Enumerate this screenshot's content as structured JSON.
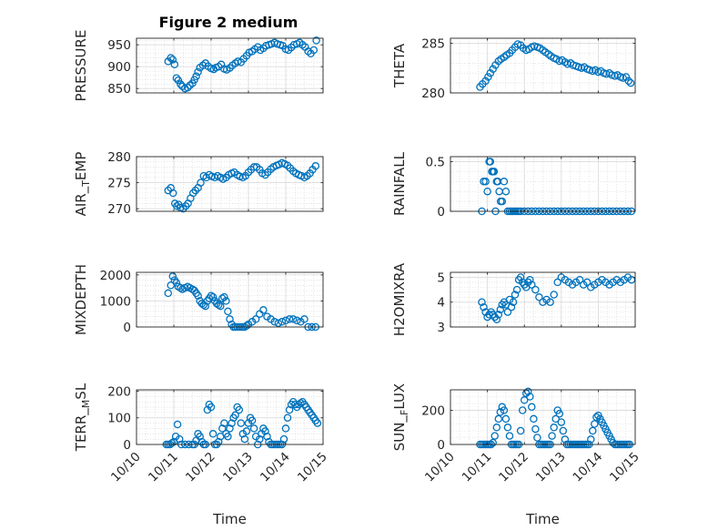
{
  "figure": {
    "title": "Figure 2 medium"
  },
  "chart_data": [
    {
      "type": "scatter",
      "ylabel": "PRESSURE",
      "ylim": [
        840,
        965
      ],
      "yticks": [
        850,
        900,
        950
      ],
      "yticklabels": [
        "850",
        "900",
        "950"
      ],
      "xtick_labels_visible": false,
      "x": [
        0.85,
        0.92,
        0.97,
        1.02,
        1.07,
        1.12,
        1.18,
        1.23,
        1.3,
        1.37,
        1.43,
        1.5,
        1.55,
        1.6,
        1.65,
        1.7,
        1.78,
        1.85,
        1.92,
        2.0,
        2.07,
        2.13,
        2.2,
        2.27,
        2.35,
        2.42,
        2.5,
        2.57,
        2.65,
        2.72,
        2.8,
        2.87,
        2.95,
        3.02,
        3.1,
        3.17,
        3.25,
        3.32,
        3.4,
        3.47,
        3.55,
        3.62,
        3.7,
        3.77,
        3.85,
        3.92,
        4.0,
        4.07,
        4.15,
        4.22,
        4.3,
        4.37,
        4.45,
        4.52,
        4.6,
        4.67,
        4.75,
        4.82
      ],
      "y": [
        912,
        920,
        916,
        905,
        874,
        869,
        860,
        855,
        850,
        852,
        857,
        862,
        870,
        878,
        888,
        898,
        903,
        908,
        901,
        896,
        894,
        898,
        900,
        905,
        895,
        893,
        897,
        903,
        908,
        912,
        910,
        918,
        925,
        932,
        935,
        940,
        945,
        938,
        942,
        948,
        950,
        952,
        955,
        952,
        950,
        948,
        940,
        938,
        944,
        950,
        952,
        955,
        950,
        945,
        935,
        930,
        938,
        960
      ],
      "color": "#0072BD"
    },
    {
      "type": "scatter",
      "ylabel": "THETA",
      "ylim": [
        280,
        285.5
      ],
      "yticks": [
        280,
        285
      ],
      "yticklabels": [
        "280",
        "285"
      ],
      "xtick_labels_visible": false,
      "x": [
        0.8,
        0.87,
        0.95,
        1.02,
        1.08,
        1.15,
        1.22,
        1.3,
        1.37,
        1.45,
        1.52,
        1.6,
        1.67,
        1.75,
        1.82,
        1.9,
        1.97,
        2.05,
        2.12,
        2.2,
        2.27,
        2.35,
        2.42,
        2.5,
        2.57,
        2.65,
        2.72,
        2.8,
        2.87,
        2.95,
        3.02,
        3.1,
        3.17,
        3.25,
        3.32,
        3.4,
        3.47,
        3.55,
        3.62,
        3.7,
        3.77,
        3.85,
        3.92,
        4.0,
        4.07,
        4.15,
        4.22,
        4.3,
        4.37,
        4.45,
        4.52,
        4.6,
        4.67,
        4.75,
        4.82,
        4.88
      ],
      "y": [
        280.6,
        280.9,
        281.2,
        281.6,
        282.0,
        282.4,
        282.8,
        283.2,
        283.4,
        283.6,
        283.8,
        284.0,
        284.3,
        284.6,
        284.9,
        284.8,
        284.5,
        284.3,
        284.4,
        284.6,
        284.7,
        284.6,
        284.5,
        284.3,
        284.1,
        283.9,
        283.7,
        283.5,
        283.4,
        283.2,
        283.3,
        283.1,
        282.9,
        283.0,
        282.8,
        282.7,
        282.6,
        282.5,
        282.6,
        282.4,
        282.3,
        282.2,
        282.3,
        282.1,
        282.2,
        282.0,
        281.9,
        282.0,
        281.8,
        281.7,
        281.8,
        281.6,
        281.5,
        281.6,
        281.2,
        281.0
      ],
      "color": "#0072BD"
    },
    {
      "type": "scatter",
      "ylabel": "AIR_TEMP",
      "ylim": [
        269.5,
        280
      ],
      "yticks": [
        270,
        275,
        280
      ],
      "yticklabels": [
        "270",
        "275",
        "280"
      ],
      "xtick_labels_visible": false,
      "x": [
        0.85,
        0.92,
        0.98,
        1.03,
        1.08,
        1.13,
        1.18,
        1.25,
        1.32,
        1.38,
        1.45,
        1.52,
        1.58,
        1.65,
        1.72,
        1.8,
        1.87,
        1.95,
        2.02,
        2.1,
        2.17,
        2.25,
        2.32,
        2.4,
        2.47,
        2.55,
        2.62,
        2.7,
        2.77,
        2.85,
        2.92,
        3.0,
        3.07,
        3.15,
        3.22,
        3.3,
        3.37,
        3.45,
        3.52,
        3.6,
        3.67,
        3.75,
        3.82,
        3.9,
        3.97,
        4.05,
        4.12,
        4.2,
        4.27,
        4.35,
        4.42,
        4.5,
        4.57,
        4.65,
        4.72,
        4.8
      ],
      "y": [
        273.5,
        274.0,
        273.0,
        271.0,
        270.5,
        270.8,
        270.2,
        270.0,
        270.5,
        271.0,
        272.0,
        273.0,
        273.5,
        274.0,
        275.0,
        276.3,
        276.0,
        276.5,
        276.2,
        276.0,
        276.3,
        276.0,
        275.7,
        276.0,
        276.5,
        276.8,
        277.0,
        276.5,
        276.2,
        276.0,
        276.3,
        277.0,
        277.5,
        278.0,
        278.0,
        277.5,
        276.8,
        276.5,
        277.0,
        277.6,
        278.0,
        278.3,
        278.5,
        278.8,
        278.6,
        278.3,
        277.8,
        277.2,
        276.8,
        276.5,
        276.3,
        276.0,
        276.3,
        276.8,
        277.5,
        278.2
      ],
      "color": "#0072BD"
    },
    {
      "type": "scatter",
      "ylabel": "RAINFALL",
      "ylim": [
        0,
        0.55
      ],
      "yticks": [
        0,
        0.5
      ],
      "yticklabels": [
        "0",
        "0.5"
      ],
      "xtick_labels_visible": false,
      "x": [
        0.85,
        0.9,
        0.95,
        1.0,
        1.05,
        1.08,
        1.12,
        1.15,
        1.18,
        1.22,
        1.25,
        1.28,
        1.32,
        1.36,
        1.4,
        1.45,
        1.5,
        1.55,
        1.6,
        1.65,
        1.7,
        1.75,
        1.8,
        1.85,
        1.9,
        2.0,
        2.1,
        2.2,
        2.3,
        2.4,
        2.5,
        2.6,
        2.7,
        2.8,
        2.9,
        3.0,
        3.1,
        3.2,
        3.3,
        3.4,
        3.5,
        3.6,
        3.7,
        3.8,
        3.9,
        4.0,
        4.1,
        4.2,
        4.3,
        4.4,
        4.5,
        4.6,
        4.7,
        4.8,
        4.9
      ],
      "y": [
        0,
        0.3,
        0.3,
        0.2,
        0.5,
        0.5,
        0.4,
        0.4,
        0.4,
        0,
        0.3,
        0.3,
        0.2,
        0.1,
        0.1,
        0.3,
        0.2,
        0,
        0,
        0,
        0,
        0,
        0,
        0,
        0,
        0,
        0,
        0,
        0,
        0,
        0,
        0,
        0,
        0,
        0,
        0,
        0,
        0,
        0,
        0,
        0,
        0,
        0,
        0,
        0,
        0,
        0,
        0,
        0,
        0,
        0,
        0,
        0,
        0,
        0
      ],
      "color": "#0072BD"
    },
    {
      "type": "scatter",
      "ylabel": "MIXDEPTH",
      "ylim": [
        0,
        2100
      ],
      "yticks": [
        0,
        1000,
        2000
      ],
      "yticklabels": [
        "0",
        "1000",
        "2000"
      ],
      "xtick_labels_visible": false,
      "x": [
        0.85,
        0.92,
        0.97,
        1.02,
        1.07,
        1.12,
        1.18,
        1.23,
        1.3,
        1.37,
        1.43,
        1.5,
        1.55,
        1.6,
        1.65,
        1.7,
        1.75,
        1.8,
        1.85,
        1.9,
        1.95,
        2.0,
        2.05,
        2.1,
        2.15,
        2.2,
        2.25,
        2.3,
        2.35,
        2.4,
        2.45,
        2.5,
        2.55,
        2.6,
        2.65,
        2.7,
        2.75,
        2.8,
        2.85,
        2.9,
        2.95,
        3.0,
        3.1,
        3.2,
        3.3,
        3.4,
        3.5,
        3.6,
        3.7,
        3.8,
        3.9,
        4.0,
        4.1,
        4.2,
        4.3,
        4.4,
        4.5,
        4.6,
        4.7,
        4.8
      ],
      "y": [
        1300,
        1600,
        1950,
        1800,
        1700,
        1550,
        1500,
        1450,
        1500,
        1550,
        1500,
        1450,
        1400,
        1300,
        1200,
        1000,
        900,
        850,
        800,
        1000,
        1100,
        1200,
        1150,
        1000,
        900,
        850,
        800,
        1100,
        1150,
        1000,
        600,
        300,
        100,
        0,
        0,
        0,
        0,
        0,
        0,
        0,
        50,
        100,
        200,
        300,
        500,
        650,
        400,
        300,
        200,
        150,
        200,
        250,
        300,
        300,
        250,
        200,
        300,
        0,
        0,
        0
      ],
      "color": "#0072BD"
    },
    {
      "type": "scatter",
      "ylabel": "H2OMIXRA",
      "ylim": [
        3,
        5.2
      ],
      "yticks": [
        3,
        4,
        5
      ],
      "yticklabels": [
        "3",
        "4",
        "5"
      ],
      "xtick_labels_visible": false,
      "x": [
        0.85,
        0.9,
        0.95,
        1.0,
        1.05,
        1.1,
        1.15,
        1.2,
        1.25,
        1.3,
        1.35,
        1.4,
        1.45,
        1.5,
        1.55,
        1.6,
        1.65,
        1.7,
        1.75,
        1.8,
        1.85,
        1.9,
        1.95,
        2.0,
        2.05,
        2.1,
        2.15,
        2.2,
        2.3,
        2.4,
        2.5,
        2.6,
        2.7,
        2.8,
        2.9,
        3.0,
        3.1,
        3.2,
        3.3,
        3.4,
        3.5,
        3.6,
        3.7,
        3.8,
        3.9,
        4.0,
        4.1,
        4.2,
        4.3,
        4.4,
        4.5,
        4.6,
        4.7,
        4.8,
        4.9
      ],
      "y": [
        4.0,
        3.8,
        3.6,
        3.4,
        3.5,
        3.6,
        3.5,
        3.4,
        3.3,
        3.5,
        3.7,
        3.9,
        4.0,
        3.9,
        3.6,
        4.1,
        3.8,
        4.0,
        4.3,
        4.5,
        4.9,
        5.0,
        4.8,
        4.7,
        4.6,
        4.8,
        4.9,
        4.7,
        4.5,
        4.2,
        4.0,
        4.1,
        4.0,
        4.3,
        4.8,
        5.0,
        4.9,
        4.8,
        4.7,
        4.8,
        4.9,
        4.7,
        4.8,
        4.6,
        4.7,
        4.8,
        4.9,
        4.8,
        4.7,
        4.8,
        4.9,
        4.8,
        4.9,
        5.0,
        4.9
      ],
      "color": "#0072BD"
    },
    {
      "type": "scatter",
      "ylabel": "TERR_MSL",
      "ylim": [
        0,
        205
      ],
      "yticks": [
        0,
        100,
        200
      ],
      "yticklabels": [
        "0",
        "100",
        "200"
      ],
      "xtick_labels": [
        "10/10",
        "10/11",
        "10/12",
        "10/13",
        "10/14",
        "10/15"
      ],
      "xlabel": "Time",
      "x": [
        0.8,
        0.85,
        0.9,
        0.95,
        1.0,
        1.05,
        1.1,
        1.15,
        1.2,
        1.3,
        1.4,
        1.5,
        1.55,
        1.6,
        1.65,
        1.7,
        1.75,
        1.8,
        1.85,
        1.9,
        1.95,
        2.0,
        2.05,
        2.1,
        2.15,
        2.2,
        2.25,
        2.3,
        2.35,
        2.4,
        2.45,
        2.5,
        2.55,
        2.6,
        2.65,
        2.7,
        2.75,
        2.8,
        2.85,
        2.9,
        2.95,
        3.0,
        3.05,
        3.1,
        3.15,
        3.2,
        3.25,
        3.3,
        3.35,
        3.4,
        3.45,
        3.5,
        3.55,
        3.6,
        3.65,
        3.7,
        3.75,
        3.8,
        3.85,
        3.9,
        3.95,
        4.0,
        4.05,
        4.1,
        4.15,
        4.2,
        4.25,
        4.3,
        4.35,
        4.4,
        4.45,
        4.5,
        4.55,
        4.6,
        4.65,
        4.7,
        4.75,
        4.8,
        4.85
      ],
      "y": [
        0,
        0,
        0,
        5,
        10,
        30,
        75,
        20,
        0,
        0,
        0,
        0,
        0,
        15,
        40,
        30,
        10,
        0,
        0,
        130,
        150,
        140,
        40,
        0,
        0,
        10,
        30,
        60,
        80,
        40,
        30,
        60,
        80,
        100,
        110,
        140,
        130,
        80,
        40,
        20,
        50,
        80,
        100,
        90,
        60,
        30,
        0,
        20,
        40,
        60,
        50,
        30,
        10,
        0,
        0,
        0,
        0,
        0,
        0,
        0,
        20,
        60,
        100,
        130,
        150,
        160,
        150,
        140,
        150,
        155,
        160,
        150,
        140,
        130,
        120,
        110,
        100,
        90,
        80
      ],
      "color": "#0072BD"
    },
    {
      "type": "scatter",
      "ylabel": "SUN_FLUX",
      "ylim": [
        0,
        320
      ],
      "yticks": [
        0,
        200
      ],
      "yticklabels": [
        "0",
        "200"
      ],
      "xtick_labels": [
        "10/10",
        "10/11",
        "10/12",
        "10/13",
        "10/14",
        "10/15"
      ],
      "xlabel": "Time",
      "x": [
        0.8,
        0.85,
        0.9,
        0.95,
        1.0,
        1.05,
        1.1,
        1.15,
        1.2,
        1.25,
        1.3,
        1.35,
        1.4,
        1.45,
        1.5,
        1.55,
        1.6,
        1.65,
        1.7,
        1.75,
        1.8,
        1.85,
        1.9,
        1.95,
        2.0,
        2.05,
        2.1,
        2.15,
        2.2,
        2.25,
        2.3,
        2.35,
        2.4,
        2.45,
        2.5,
        2.55,
        2.6,
        2.65,
        2.7,
        2.75,
        2.8,
        2.85,
        2.9,
        2.95,
        3.0,
        3.05,
        3.1,
        3.15,
        3.2,
        3.25,
        3.3,
        3.35,
        3.4,
        3.45,
        3.5,
        3.55,
        3.6,
        3.65,
        3.7,
        3.75,
        3.8,
        3.85,
        3.9,
        3.95,
        4.0,
        4.05,
        4.1,
        4.15,
        4.2,
        4.25,
        4.3,
        4.35,
        4.4,
        4.45,
        4.5,
        4.55,
        4.6,
        4.65,
        4.7,
        4.75,
        4.8,
        4.85
      ],
      "y": [
        0,
        0,
        0,
        0,
        0,
        0,
        0,
        10,
        50,
        100,
        150,
        190,
        220,
        200,
        150,
        100,
        50,
        0,
        0,
        0,
        0,
        0,
        80,
        200,
        260,
        300,
        310,
        280,
        220,
        150,
        90,
        40,
        0,
        0,
        0,
        0,
        0,
        0,
        0,
        50,
        100,
        150,
        200,
        180,
        130,
        80,
        30,
        0,
        0,
        0,
        0,
        0,
        0,
        0,
        0,
        0,
        0,
        0,
        0,
        0,
        30,
        80,
        120,
        160,
        170,
        150,
        130,
        110,
        90,
        70,
        50,
        30,
        10,
        0,
        0,
        0,
        0,
        0,
        0,
        0,
        0,
        0
      ],
      "color": "#0072BD"
    }
  ]
}
